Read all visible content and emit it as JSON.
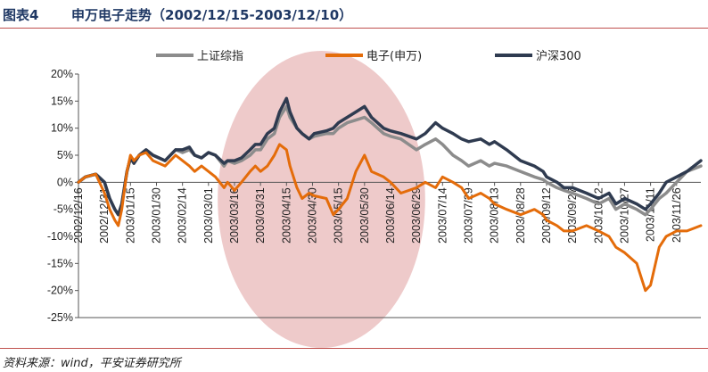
{
  "figure": {
    "label": "图表4",
    "title": "申万电子走势（2002/12/15-2003/12/10）",
    "source": "资料来源：wind，平安证券研究所"
  },
  "colors": {
    "上证综指": "#8c8c8c",
    "电子(申万)": "#e46c0a",
    "沪深300": "#2f3b50",
    "highlight": "#e8b8b8",
    "rule": "#c0504d"
  },
  "chart_data": {
    "type": "line",
    "title": "",
    "xlabel": "",
    "ylabel": "",
    "ylim": [
      -25,
      20
    ],
    "yticks": [
      -25,
      -20,
      -15,
      -10,
      -5,
      0,
      5,
      10,
      15,
      20
    ],
    "ytick_labels": [
      "-25%",
      "-20%",
      "-15%",
      "-10%",
      "-5%",
      "0%",
      "5%",
      "10%",
      "15%",
      "20%"
    ],
    "xlim": [
      "2002-12-16",
      "2003-12-10"
    ],
    "xtick_labels": [
      "2002/12/16",
      "2002/12/31",
      "2003/01/15",
      "2003/01/30",
      "2003/02/14",
      "2003/03/01",
      "2003/03/16",
      "2003/03/31",
      "2003/04/15",
      "2003/04/30",
      "2003/05/15",
      "2003/05/30",
      "2003/06/14",
      "2003/06/29",
      "2003/07/14",
      "2003/07/29",
      "2003/08/13",
      "2003/08/28",
      "2003/09/12",
      "2003/09/27",
      "2003/10/12",
      "2003/10/27",
      "2003/11/11",
      "2003/11/26"
    ],
    "legend": "top",
    "grid": false,
    "highlight_period": [
      "2003-03-31",
      "2003-05-30"
    ],
    "series": [
      {
        "name": "上证综指",
        "points": [
          [
            "2002-12-16",
            0
          ],
          [
            "2002-12-20",
            1
          ],
          [
            "2002-12-26",
            1.5
          ],
          [
            "2002-12-31",
            0
          ],
          [
            "2003-01-03",
            -3
          ],
          [
            "2003-01-06",
            -5
          ],
          [
            "2003-01-08",
            -6
          ],
          [
            "2003-01-10",
            -4
          ],
          [
            "2003-01-13",
            2
          ],
          [
            "2003-01-15",
            4.5
          ],
          [
            "2003-01-17",
            3.5
          ],
          [
            "2003-01-20",
            5
          ],
          [
            "2003-01-24",
            6
          ],
          [
            "2003-01-28",
            5
          ],
          [
            "2003-02-04",
            4
          ],
          [
            "2003-02-10",
            6
          ],
          [
            "2003-02-14",
            5.5
          ],
          [
            "2003-02-18",
            6
          ],
          [
            "2003-02-21",
            5
          ],
          [
            "2003-02-25",
            4.5
          ],
          [
            "2003-03-01",
            5.5
          ],
          [
            "2003-03-05",
            5
          ],
          [
            "2003-03-10",
            3
          ],
          [
            "2003-03-12",
            4
          ],
          [
            "2003-03-16",
            3.5
          ],
          [
            "2003-03-20",
            4
          ],
          [
            "2003-03-25",
            5
          ],
          [
            "2003-03-28",
            6
          ],
          [
            "2003-03-31",
            6
          ],
          [
            "2003-04-04",
            8
          ],
          [
            "2003-04-08",
            9
          ],
          [
            "2003-04-11",
            12
          ],
          [
            "2003-04-15",
            14
          ],
          [
            "2003-04-17",
            12
          ],
          [
            "2003-04-21",
            10
          ],
          [
            "2003-04-24",
            9
          ],
          [
            "2003-04-28",
            8
          ],
          [
            "2003-05-01",
            8.5
          ],
          [
            "2003-05-08",
            9
          ],
          [
            "2003-05-12",
            9
          ],
          [
            "2003-05-15",
            10
          ],
          [
            "2003-05-20",
            11
          ],
          [
            "2003-05-25",
            11.5
          ],
          [
            "2003-05-30",
            12
          ],
          [
            "2003-06-03",
            11
          ],
          [
            "2003-06-10",
            9
          ],
          [
            "2003-06-14",
            8.5
          ],
          [
            "2003-06-20",
            8
          ],
          [
            "2003-06-29",
            6
          ],
          [
            "2003-07-04",
            7
          ],
          [
            "2003-07-10",
            8
          ],
          [
            "2003-07-14",
            7
          ],
          [
            "2003-07-20",
            5
          ],
          [
            "2003-07-25",
            4
          ],
          [
            "2003-07-29",
            3
          ],
          [
            "2003-08-05",
            4
          ],
          [
            "2003-08-10",
            3
          ],
          [
            "2003-08-13",
            3.5
          ],
          [
            "2003-08-20",
            3
          ],
          [
            "2003-08-28",
            2
          ],
          [
            "2003-09-05",
            1
          ],
          [
            "2003-09-10",
            0.5
          ],
          [
            "2003-09-12",
            0
          ],
          [
            "2003-09-18",
            -1
          ],
          [
            "2003-09-22",
            -1.5
          ],
          [
            "2003-09-27",
            -2
          ],
          [
            "2003-10-05",
            -3
          ],
          [
            "2003-10-12",
            -4
          ],
          [
            "2003-10-18",
            -3
          ],
          [
            "2003-10-22",
            -5
          ],
          [
            "2003-10-27",
            -4
          ],
          [
            "2003-11-03",
            -5
          ],
          [
            "2003-11-08",
            -6
          ],
          [
            "2003-11-11",
            -5
          ],
          [
            "2003-11-16",
            -3
          ],
          [
            "2003-11-20",
            -2
          ],
          [
            "2003-11-26",
            0
          ],
          [
            "2003-12-02",
            2
          ],
          [
            "2003-12-10",
            3
          ]
        ]
      },
      {
        "name": "电子(申万)",
        "points": [
          [
            "2002-12-16",
            0
          ],
          [
            "2002-12-20",
            1
          ],
          [
            "2002-12-26",
            1.5
          ],
          [
            "2002-12-31",
            -2
          ],
          [
            "2003-01-03",
            -5
          ],
          [
            "2003-01-06",
            -7
          ],
          [
            "2003-01-08",
            -8
          ],
          [
            "2003-01-10",
            -5
          ],
          [
            "2003-01-13",
            2
          ],
          [
            "2003-01-15",
            5
          ],
          [
            "2003-01-17",
            4
          ],
          [
            "2003-01-20",
            5
          ],
          [
            "2003-01-24",
            5.5
          ],
          [
            "2003-01-28",
            4
          ],
          [
            "2003-02-04",
            3
          ],
          [
            "2003-02-10",
            5
          ],
          [
            "2003-02-14",
            4
          ],
          [
            "2003-02-18",
            3
          ],
          [
            "2003-02-21",
            2
          ],
          [
            "2003-02-25",
            3
          ],
          [
            "2003-03-01",
            2
          ],
          [
            "2003-03-05",
            1
          ],
          [
            "2003-03-10",
            -1
          ],
          [
            "2003-03-12",
            0
          ],
          [
            "2003-03-16",
            -1.5
          ],
          [
            "2003-03-20",
            0
          ],
          [
            "2003-03-25",
            2
          ],
          [
            "2003-03-28",
            3
          ],
          [
            "2003-03-31",
            2
          ],
          [
            "2003-04-04",
            3
          ],
          [
            "2003-04-08",
            5
          ],
          [
            "2003-04-11",
            7
          ],
          [
            "2003-04-15",
            6
          ],
          [
            "2003-04-17",
            3
          ],
          [
            "2003-04-21",
            -1
          ],
          [
            "2003-04-24",
            -3
          ],
          [
            "2003-04-28",
            -2
          ],
          [
            "2003-05-01",
            -2.5
          ],
          [
            "2003-05-08",
            -3
          ],
          [
            "2003-05-12",
            -6
          ],
          [
            "2003-05-15",
            -5
          ],
          [
            "2003-05-20",
            -3
          ],
          [
            "2003-05-25",
            2
          ],
          [
            "2003-05-30",
            5
          ],
          [
            "2003-06-03",
            2
          ],
          [
            "2003-06-10",
            1
          ],
          [
            "2003-06-14",
            0
          ],
          [
            "2003-06-20",
            -2
          ],
          [
            "2003-06-29",
            -1
          ],
          [
            "2003-07-04",
            0
          ],
          [
            "2003-07-10",
            -1
          ],
          [
            "2003-07-14",
            1
          ],
          [
            "2003-07-20",
            0
          ],
          [
            "2003-07-25",
            -1
          ],
          [
            "2003-07-29",
            -3
          ],
          [
            "2003-08-05",
            -2
          ],
          [
            "2003-08-10",
            -3
          ],
          [
            "2003-08-13",
            -4
          ],
          [
            "2003-08-20",
            -5
          ],
          [
            "2003-08-28",
            -6
          ],
          [
            "2003-09-05",
            -5
          ],
          [
            "2003-09-10",
            -6
          ],
          [
            "2003-09-12",
            -7
          ],
          [
            "2003-09-18",
            -8
          ],
          [
            "2003-09-22",
            -9
          ],
          [
            "2003-09-27",
            -9
          ],
          [
            "2003-10-05",
            -8
          ],
          [
            "2003-10-12",
            -9
          ],
          [
            "2003-10-18",
            -10
          ],
          [
            "2003-10-22",
            -12
          ],
          [
            "2003-10-27",
            -13
          ],
          [
            "2003-11-03",
            -15
          ],
          [
            "2003-11-08",
            -20
          ],
          [
            "2003-11-11",
            -19
          ],
          [
            "2003-11-16",
            -12
          ],
          [
            "2003-11-20",
            -10
          ],
          [
            "2003-11-26",
            -9
          ],
          [
            "2003-12-02",
            -9
          ],
          [
            "2003-12-10",
            -8
          ]
        ]
      },
      {
        "name": "沪深300",
        "points": [
          [
            "2002-12-16",
            0
          ],
          [
            "2002-12-20",
            1
          ],
          [
            "2002-12-26",
            1.5
          ],
          [
            "2002-12-31",
            0
          ],
          [
            "2003-01-03",
            -3
          ],
          [
            "2003-01-06",
            -5
          ],
          [
            "2003-01-08",
            -6
          ],
          [
            "2003-01-10",
            -4
          ],
          [
            "2003-01-13",
            2
          ],
          [
            "2003-01-15",
            4.5
          ],
          [
            "2003-01-17",
            3.5
          ],
          [
            "2003-01-20",
            5
          ],
          [
            "2003-01-24",
            6
          ],
          [
            "2003-01-28",
            5
          ],
          [
            "2003-02-04",
            4
          ],
          [
            "2003-02-10",
            6
          ],
          [
            "2003-02-14",
            6
          ],
          [
            "2003-02-18",
            6.5
          ],
          [
            "2003-02-21",
            5
          ],
          [
            "2003-02-25",
            4.5
          ],
          [
            "2003-03-01",
            5.5
          ],
          [
            "2003-03-05",
            5
          ],
          [
            "2003-03-10",
            3.5
          ],
          [
            "2003-03-12",
            4
          ],
          [
            "2003-03-16",
            4
          ],
          [
            "2003-03-20",
            4.5
          ],
          [
            "2003-03-25",
            6
          ],
          [
            "2003-03-28",
            7
          ],
          [
            "2003-03-31",
            7
          ],
          [
            "2003-04-04",
            9
          ],
          [
            "2003-04-08",
            10
          ],
          [
            "2003-04-11",
            13
          ],
          [
            "2003-04-15",
            15.5
          ],
          [
            "2003-04-17",
            13
          ],
          [
            "2003-04-21",
            10
          ],
          [
            "2003-04-24",
            9
          ],
          [
            "2003-04-28",
            8
          ],
          [
            "2003-05-01",
            9
          ],
          [
            "2003-05-08",
            9.5
          ],
          [
            "2003-05-12",
            10
          ],
          [
            "2003-05-15",
            11
          ],
          [
            "2003-05-20",
            12
          ],
          [
            "2003-05-25",
            13
          ],
          [
            "2003-05-30",
            14
          ],
          [
            "2003-06-03",
            12
          ],
          [
            "2003-06-10",
            10
          ],
          [
            "2003-06-14",
            9.5
          ],
          [
            "2003-06-20",
            9
          ],
          [
            "2003-06-29",
            8
          ],
          [
            "2003-07-04",
            9
          ],
          [
            "2003-07-10",
            11
          ],
          [
            "2003-07-14",
            10
          ],
          [
            "2003-07-20",
            9
          ],
          [
            "2003-07-25",
            8
          ],
          [
            "2003-07-29",
            7.5
          ],
          [
            "2003-08-05",
            8
          ],
          [
            "2003-08-10",
            7
          ],
          [
            "2003-08-13",
            7.5
          ],
          [
            "2003-08-20",
            6
          ],
          [
            "2003-08-28",
            4
          ],
          [
            "2003-09-05",
            3
          ],
          [
            "2003-09-10",
            2
          ],
          [
            "2003-09-12",
            1
          ],
          [
            "2003-09-18",
            0
          ],
          [
            "2003-09-22",
            -1
          ],
          [
            "2003-09-27",
            -1
          ],
          [
            "2003-10-05",
            -2
          ],
          [
            "2003-10-12",
            -3
          ],
          [
            "2003-10-18",
            -2
          ],
          [
            "2003-10-22",
            -4
          ],
          [
            "2003-10-27",
            -3
          ],
          [
            "2003-11-03",
            -4
          ],
          [
            "2003-11-08",
            -5
          ],
          [
            "2003-11-11",
            -4
          ],
          [
            "2003-11-16",
            -2
          ],
          [
            "2003-11-20",
            0
          ],
          [
            "2003-11-26",
            1
          ],
          [
            "2003-12-02",
            2
          ],
          [
            "2003-12-10",
            4
          ]
        ]
      }
    ]
  }
}
